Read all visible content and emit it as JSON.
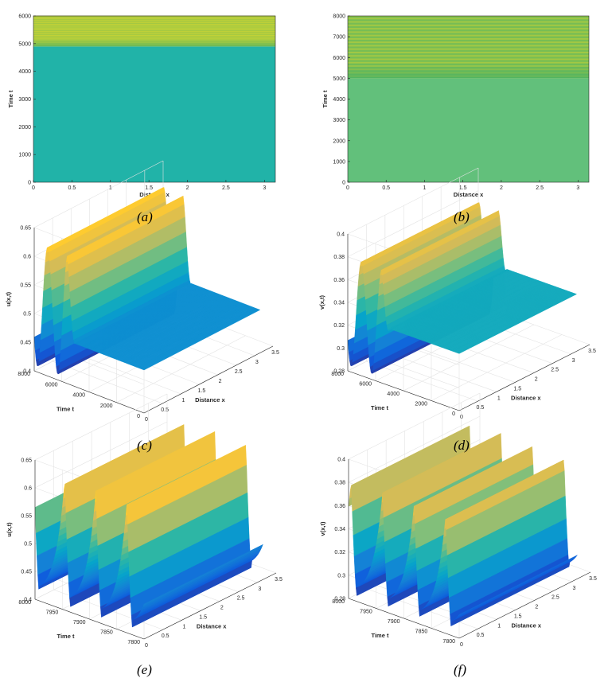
{
  "captions": [
    "(a)",
    "(b)",
    "(c)",
    "(d)",
    "(e)",
    "(f)"
  ],
  "colors": {
    "u_steady": "#21b3a8",
    "v_steady": "#62c07b",
    "stripe_yellow": "#c9d335",
    "stripe_green": "#3fae6a",
    "parula": [
      "#352a87",
      "#0f5cdd",
      "#1481d6",
      "#06a4ca",
      "#2eb7a4",
      "#87bf77",
      "#d1bb59",
      "#fec832",
      "#f9fb0e"
    ]
  },
  "chart_data": [
    {
      "id": "a",
      "type": "heatmap",
      "view": "top",
      "xlabel": "Distance x",
      "ylabel": "Time t",
      "xlim": [
        0,
        3.14159
      ],
      "ylim": [
        0,
        6000
      ],
      "xticks": [
        "0",
        "0.5",
        "1",
        "1.5",
        "2",
        "2.5",
        "3"
      ],
      "yticks": [
        "0",
        "1000",
        "2000",
        "3000",
        "4000",
        "5000",
        "6000"
      ],
      "transition_t": 4900,
      "oscillation_band": [
        4900,
        6000
      ]
    },
    {
      "id": "b",
      "type": "heatmap",
      "view": "top",
      "xlabel": "Distance x",
      "ylabel": "Time t",
      "xlim": [
        0,
        3.14159
      ],
      "ylim": [
        0,
        8000
      ],
      "xticks": [
        "0",
        "0.5",
        "1",
        "1.5",
        "2",
        "2.5",
        "3"
      ],
      "yticks": [
        "0",
        "1000",
        "2000",
        "3000",
        "4000",
        "5000",
        "6000",
        "7000",
        "8000"
      ],
      "transition_t": 5000,
      "oscillation_band": [
        5000,
        8000
      ]
    },
    {
      "id": "c",
      "type": "surface",
      "xlabel": "Distance x",
      "ylabel": "Time t",
      "zlabel": "u(x,t)",
      "xlim": [
        0,
        3.5
      ],
      "ylim": [
        0,
        8000
      ],
      "zlim": [
        0.4,
        0.65
      ],
      "xticks": [
        "0",
        "0.5",
        "1",
        "1.5",
        "2",
        "2.5",
        "3",
        "3.5"
      ],
      "yticks": [
        "0",
        "2000",
        "4000",
        "6000",
        "8000"
      ],
      "zticks": [
        "0.4",
        "0.45",
        "0.5",
        "0.55",
        "0.6",
        "0.65"
      ],
      "steady_value": 0.475,
      "osc_min": 0.41,
      "osc_max": 0.625,
      "transition_t": 5000
    },
    {
      "id": "d",
      "type": "surface",
      "xlabel": "Distance x",
      "ylabel": "Time t",
      "zlabel": "v(x,t)",
      "xlim": [
        0,
        3.5
      ],
      "ylim": [
        0,
        8000
      ],
      "zlim": [
        0.28,
        0.4
      ],
      "xticks": [
        "0",
        "0.5",
        "1",
        "1.5",
        "2",
        "2.5",
        "3",
        "3.5"
      ],
      "yticks": [
        "0",
        "2000",
        "4000",
        "6000",
        "8000"
      ],
      "zticks": [
        "0.28",
        "0.3",
        "0.32",
        "0.34",
        "0.36",
        "0.38",
        "0.4"
      ],
      "steady_value": 0.33,
      "osc_min": 0.285,
      "osc_max": 0.38,
      "transition_t": 5000
    },
    {
      "id": "e",
      "type": "surface",
      "xlabel": "Distance x",
      "ylabel": "Time t",
      "zlabel": "u(x,t)",
      "xlim": [
        0,
        3.5
      ],
      "ylim": [
        7800,
        8000
      ],
      "zlim": [
        0.4,
        0.65
      ],
      "xticks": [
        "0",
        "0.5",
        "1",
        "1.5",
        "2",
        "2.5",
        "3",
        "3.5"
      ],
      "yticks": [
        "7800",
        "7850",
        "7900",
        "7950",
        "8000"
      ],
      "zticks": [
        "0.4",
        "0.45",
        "0.5",
        "0.55",
        "0.6",
        "0.65"
      ],
      "osc_min": 0.41,
      "osc_max": 0.635,
      "period": 57,
      "phase": 7992
    },
    {
      "id": "f",
      "type": "surface",
      "xlabel": "Distance x",
      "ylabel": "Time t",
      "zlabel": "v(x,t)",
      "xlim": [
        0,
        3.5
      ],
      "ylim": [
        7800,
        8000
      ],
      "zlim": [
        0.28,
        0.4
      ],
      "xticks": [
        "0",
        "0.5",
        "1",
        "1.5",
        "2",
        "2.5",
        "3",
        "3.5"
      ],
      "yticks": [
        "7800",
        "7850",
        "7900",
        "7950",
        "8000"
      ],
      "zticks": [
        "0.28",
        "0.3",
        "0.32",
        "0.34",
        "0.36",
        "0.38",
        "0.4"
      ],
      "osc_min": 0.285,
      "osc_max": 0.382,
      "period": 57,
      "phase": 7985
    }
  ]
}
